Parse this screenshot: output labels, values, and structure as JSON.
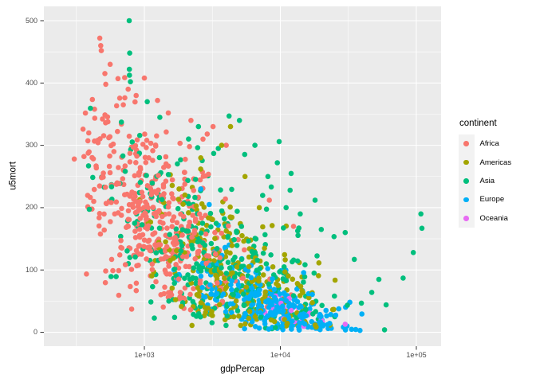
{
  "legend": {
    "title": "continent",
    "entries": [
      {
        "label": "Africa",
        "color": "#F8766D"
      },
      {
        "label": "Americas",
        "color": "#A3A500"
      },
      {
        "label": "Asia",
        "color": "#00BF7D"
      },
      {
        "label": "Europe",
        "color": "#00B0F6"
      },
      {
        "label": "Oceania",
        "color": "#E76BF3"
      }
    ]
  },
  "chart_data": {
    "type": "scatter",
    "title": "",
    "xlabel": "gdpPercap",
    "ylabel": "u5mort",
    "x_scale": "log10",
    "legend_position": "right",
    "grid": "major+minor",
    "x_ticks": [
      {
        "label": "1e+03",
        "value": 1000
      },
      {
        "label": "1e+04",
        "value": 10000
      },
      {
        "label": "1e+05",
        "value": 100000
      }
    ],
    "y_ticks": [
      {
        "label": "0",
        "value": 0
      },
      {
        "label": "100",
        "value": 100
      },
      {
        "label": "200",
        "value": 200
      },
      {
        "label": "300",
        "value": 300
      },
      {
        "label": "400",
        "value": 400
      },
      {
        "label": "500",
        "value": 500
      }
    ],
    "x_minor_log10": [
      2.5,
      3.5,
      4.5
    ],
    "y_minor": [
      50,
      150,
      250,
      350,
      450
    ],
    "x_domain_log10": [
      2.261,
      5.182
    ],
    "y_domain": [
      -22.3,
      523
    ],
    "series": [
      {
        "name": "Africa",
        "color": "#F8766D",
        "n": 430,
        "lg_mean": 3.06,
        "lg_sd": 0.3,
        "lg_min": 2.54,
        "lg_max": 4.05,
        "m_a": 710,
        "m_b": -172,
        "m_sd": 75,
        "m_min": 25,
        "m_max": 478
      },
      {
        "name": "Americas",
        "color": "#A3A500",
        "n": 260,
        "lg_mean": 3.65,
        "lg_sd": 0.3,
        "lg_min": 2.95,
        "lg_max": 4.42,
        "m_a": 560,
        "m_b": -130,
        "m_sd": 55,
        "m_min": 8,
        "m_max": 360
      },
      {
        "name": "Asia",
        "color": "#00BF7D",
        "n": 330,
        "lg_mean": 3.45,
        "lg_sd": 0.5,
        "lg_min": 2.52,
        "lg_max": 5.04,
        "m_a": 560,
        "m_b": -130,
        "m_sd": 75,
        "m_min": 4,
        "m_max": 500
      },
      {
        "name": "Europe",
        "color": "#00B0F6",
        "n": 290,
        "lg_mean": 3.95,
        "lg_sd": 0.3,
        "lg_min": 3.08,
        "lg_max": 4.68,
        "m_a": 380,
        "m_b": -88,
        "m_sd": 28,
        "m_min": 3,
        "m_max": 290
      },
      {
        "name": "Oceania",
        "color": "#E76BF3",
        "n": 20,
        "lg_mean": 4.05,
        "lg_sd": 0.12,
        "lg_min": 3.88,
        "lg_max": 4.32,
        "m_a": 330,
        "m_b": -75,
        "m_sd": 18,
        "m_min": 8,
        "m_max": 62
      }
    ],
    "notable_points": [
      {
        "continent": "Africa",
        "gdp": 470,
        "u5mort": 472
      },
      {
        "continent": "Africa",
        "gdp": 478,
        "u5mort": 460
      },
      {
        "continent": "Africa",
        "gdp": 482,
        "u5mort": 452
      },
      {
        "continent": "Africa",
        "gdp": 560,
        "u5mort": 430
      },
      {
        "continent": "Africa",
        "gdp": 640,
        "u5mort": 407
      },
      {
        "continent": "Africa",
        "gdp": 1000,
        "u5mort": 408
      },
      {
        "continent": "Africa",
        "gdp": 520,
        "u5mort": 398
      },
      {
        "continent": "Africa",
        "gdp": 760,
        "u5mort": 390
      },
      {
        "continent": "Africa",
        "gdp": 870,
        "u5mort": 380
      },
      {
        "continent": "Africa",
        "gdp": 1250,
        "u5mort": 372
      },
      {
        "continent": "Africa",
        "gdp": 700,
        "u5mort": 365
      },
      {
        "continent": "Africa",
        "gdp": 430,
        "u5mort": 358
      },
      {
        "continent": "Africa",
        "gdp": 1500,
        "u5mort": 352
      },
      {
        "continent": "Africa",
        "gdp": 2200,
        "u5mort": 340
      },
      {
        "continent": "Africa",
        "gdp": 3200,
        "u5mort": 330
      },
      {
        "continent": "Africa",
        "gdp": 390,
        "u5mort": 320
      },
      {
        "continent": "Africa",
        "gdp": 2700,
        "u5mort": 310
      },
      {
        "continent": "Africa",
        "gdp": 4000,
        "u5mort": 300
      },
      {
        "continent": "Africa",
        "gdp": 360,
        "u5mort": 282
      },
      {
        "continent": "Africa",
        "gdp": 305,
        "u5mort": 278
      },
      {
        "continent": "Africa",
        "gdp": 8300,
        "u5mort": 212
      },
      {
        "continent": "Africa",
        "gdp": 12500,
        "u5mort": 170
      },
      {
        "continent": "Africa",
        "gdp": 12000,
        "u5mort": 60
      },
      {
        "continent": "Asia",
        "gdp": 774,
        "u5mort": 500
      },
      {
        "continent": "Asia",
        "gdp": 780,
        "u5mort": 448
      },
      {
        "continent": "Asia",
        "gdp": 776,
        "u5mort": 422
      },
      {
        "continent": "Asia",
        "gdp": 790,
        "u5mort": 402
      },
      {
        "continent": "Asia",
        "gdp": 1050,
        "u5mort": 370
      },
      {
        "continent": "Asia",
        "gdp": 4200,
        "u5mort": 347
      },
      {
        "continent": "Asia",
        "gdp": 1300,
        "u5mort": 345
      },
      {
        "continent": "Asia",
        "gdp": 5000,
        "u5mort": 340
      },
      {
        "continent": "Asia",
        "gdp": 2500,
        "u5mort": 330
      },
      {
        "continent": "Asia",
        "gdp": 6500,
        "u5mort": 300
      },
      {
        "continent": "Asia",
        "gdp": 9800,
        "u5mort": 306
      },
      {
        "continent": "Asia",
        "gdp": 3500,
        "u5mort": 295
      },
      {
        "continent": "Asia",
        "gdp": 9500,
        "u5mort": 272
      },
      {
        "continent": "Asia",
        "gdp": 12000,
        "u5mort": 255
      },
      {
        "continent": "Asia",
        "gdp": 8100,
        "u5mort": 250
      },
      {
        "continent": "Asia",
        "gdp": 11800,
        "u5mort": 228
      },
      {
        "continent": "Asia",
        "gdp": 18000,
        "u5mort": 212
      },
      {
        "continent": "Asia",
        "gdp": 14000,
        "u5mort": 190
      },
      {
        "continent": "Asia",
        "gdp": 20000,
        "u5mort": 165
      },
      {
        "continent": "Asia",
        "gdp": 30000,
        "u5mort": 160
      },
      {
        "continent": "Asia",
        "gdp": 108000,
        "u5mort": 190
      },
      {
        "continent": "Asia",
        "gdp": 110000,
        "u5mort": 167
      },
      {
        "continent": "Asia",
        "gdp": 95000,
        "u5mort": 128
      },
      {
        "continent": "Asia",
        "gdp": 35000,
        "u5mort": 117
      },
      {
        "continent": "Asia",
        "gdp": 80000,
        "u5mort": 87
      },
      {
        "continent": "Asia",
        "gdp": 47000,
        "u5mort": 64
      },
      {
        "continent": "Asia",
        "gdp": 60000,
        "u5mort": 44
      },
      {
        "continent": "Asia",
        "gdp": 25000,
        "u5mort": 58
      },
      {
        "continent": "Americas",
        "gdp": 4300,
        "u5mort": 330
      },
      {
        "continent": "Americas",
        "gdp": 3700,
        "u5mort": 300
      },
      {
        "continent": "Americas",
        "gdp": 2600,
        "u5mort": 280
      },
      {
        "continent": "Americas",
        "gdp": 5500,
        "u5mort": 250
      },
      {
        "continent": "Americas",
        "gdp": 1800,
        "u5mort": 230
      },
      {
        "continent": "Americas",
        "gdp": 7000,
        "u5mort": 200
      },
      {
        "continent": "Europe",
        "gdp": 2600,
        "u5mort": 230
      },
      {
        "continent": "Europe",
        "gdp": 3000,
        "u5mort": 205
      },
      {
        "continent": "Europe",
        "gdp": 3500,
        "u5mort": 172
      },
      {
        "continent": "Europe",
        "gdp": 2300,
        "u5mort": 152
      },
      {
        "continent": "Europe",
        "gdp": 4200,
        "u5mort": 140
      },
      {
        "continent": "Europe",
        "gdp": 5200,
        "u5mort": 118
      },
      {
        "continent": "Oceania",
        "gdp": 8000,
        "u5mort": 55
      },
      {
        "continent": "Oceania",
        "gdp": 9000,
        "u5mort": 42
      },
      {
        "continent": "Oceania",
        "gdp": 12000,
        "u5mort": 35
      },
      {
        "continent": "Oceania",
        "gdp": 16000,
        "u5mort": 28
      },
      {
        "continent": "Oceania",
        "gdp": 20000,
        "u5mort": 20
      },
      {
        "continent": "Oceania",
        "gdp": 30000,
        "u5mort": 13
      }
    ]
  },
  "style": {
    "panel_bg": "#EBEBEB",
    "grid_color": "#FFFFFF",
    "tick_color": "#333333",
    "tick_label_color": "#4D4D4D",
    "axis_title_color": "#000000",
    "legend_key_bg": "#F2F2F2",
    "point_radius": 3.3
  }
}
